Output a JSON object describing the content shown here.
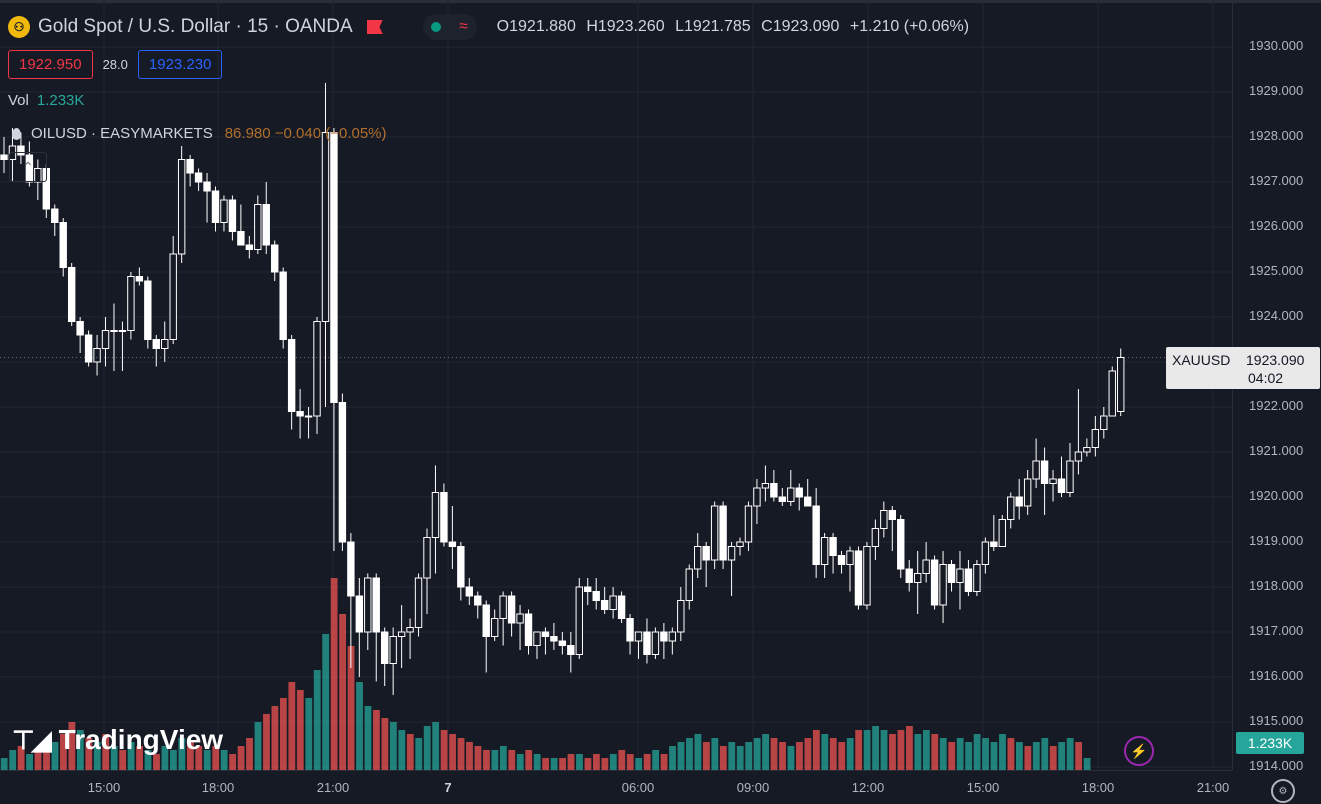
{
  "header": {
    "title": "Gold Spot / U.S. Dollar · 15 · OANDA",
    "ohlc": {
      "open": "O1921.880",
      "high": "H1923.260",
      "low": "L1921.785",
      "close": "C1923.090",
      "change": "+1.210 (+0.06%)"
    }
  },
  "quote": {
    "bid": "1922.950",
    "spread": "28.0",
    "ask": "1923.230"
  },
  "volume": {
    "label": "Vol",
    "value": "1.233K"
  },
  "compare": {
    "symbol": "OILUSD · EASYMARKETS",
    "price": "86.980 −0.040 (−0.05%)"
  },
  "branding": {
    "logo_text": "TradingView"
  },
  "last_price": {
    "symbol": "XAUUSD",
    "price": "1923.090",
    "countdown": "04:02"
  },
  "volume_badge": "1.233K",
  "colors": {
    "background": "#161a25",
    "up": "#ffffff",
    "down": "#ffffff",
    "vol_up": "#26a69a",
    "vol_down": "#ef5350",
    "grid": "#232633"
  },
  "chart_data": {
    "type": "candlestick",
    "y_ticks": [
      "1930.000",
      "1929.000",
      "1928.000",
      "1927.000",
      "1926.000",
      "1925.000",
      "1924.000",
      "1923.000",
      "1922.000",
      "1921.000",
      "1920.000",
      "1919.000",
      "1918.000",
      "1917.000",
      "1916.000",
      "1915.000",
      "1914.000"
    ],
    "x_ticks": [
      "15:00",
      "18:00",
      "21:00",
      "7",
      "06:00",
      "09:00",
      "12:00",
      "15:00",
      "18:00",
      "21:00"
    ],
    "ylim": [
      1914.0,
      1930.0
    ],
    "ohlc": [
      [
        1927.6,
        1928.0,
        1927.2,
        1927.5
      ],
      [
        1927.5,
        1928.2,
        1927.0,
        1927.8
      ],
      [
        1927.8,
        1928.1,
        1927.4,
        1927.6
      ],
      [
        1927.6,
        1927.9,
        1926.9,
        1927.0
      ],
      [
        1927.0,
        1927.5,
        1926.6,
        1927.3
      ],
      [
        1927.3,
        1927.4,
        1926.2,
        1926.4
      ],
      [
        1926.4,
        1926.5,
        1925.8,
        1926.1
      ],
      [
        1926.1,
        1926.2,
        1924.9,
        1925.1
      ],
      [
        1925.1,
        1925.2,
        1923.8,
        1923.9
      ],
      [
        1923.9,
        1924.0,
        1923.2,
        1923.6
      ],
      [
        1923.6,
        1923.7,
        1922.9,
        1923.0
      ],
      [
        1923.0,
        1923.6,
        1922.7,
        1923.3
      ],
      [
        1923.3,
        1924.0,
        1922.9,
        1923.7
      ],
      [
        1923.7,
        1924.3,
        1922.8,
        1923.7
      ],
      [
        1923.7,
        1923.9,
        1922.8,
        1923.7
      ],
      [
        1923.7,
        1925.0,
        1923.5,
        1924.9
      ],
      [
        1924.9,
        1925.1,
        1924.7,
        1924.8
      ],
      [
        1924.8,
        1924.9,
        1923.3,
        1923.5
      ],
      [
        1923.5,
        1923.6,
        1922.9,
        1923.3
      ],
      [
        1923.3,
        1923.9,
        1923.0,
        1923.5
      ],
      [
        1923.5,
        1925.8,
        1923.4,
        1925.4
      ],
      [
        1925.4,
        1927.8,
        1925.2,
        1927.5
      ],
      [
        1927.5,
        1927.6,
        1926.9,
        1927.2
      ],
      [
        1927.2,
        1927.3,
        1926.8,
        1927.0
      ],
      [
        1927.0,
        1927.2,
        1926.1,
        1926.8
      ],
      [
        1926.8,
        1926.9,
        1925.9,
        1926.1
      ],
      [
        1926.1,
        1926.7,
        1925.9,
        1926.6
      ],
      [
        1926.6,
        1926.7,
        1925.7,
        1925.9
      ],
      [
        1925.9,
        1926.5,
        1925.6,
        1925.6
      ],
      [
        1925.6,
        1925.8,
        1925.3,
        1925.5
      ],
      [
        1925.5,
        1926.7,
        1925.4,
        1926.5
      ],
      [
        1926.5,
        1927.0,
        1925.4,
        1925.6
      ],
      [
        1925.6,
        1925.7,
        1924.8,
        1925.0
      ],
      [
        1925.0,
        1925.1,
        1923.3,
        1923.5
      ],
      [
        1923.5,
        1923.6,
        1921.5,
        1921.9
      ],
      [
        1921.9,
        1922.4,
        1921.3,
        1921.8
      ],
      [
        1921.8,
        1922.0,
        1921.3,
        1921.8
      ],
      [
        1921.8,
        1924.0,
        1921.4,
        1923.9
      ],
      [
        1923.9,
        1929.2,
        1922.0,
        1928.1
      ],
      [
        1928.1,
        1928.2,
        1918.8,
        1922.1
      ],
      [
        1922.1,
        1922.3,
        1918.8,
        1919.0
      ],
      [
        1919.0,
        1919.2,
        1916.2,
        1917.8
      ],
      [
        1917.8,
        1918.2,
        1916.0,
        1917.0
      ],
      [
        1917.0,
        1918.3,
        1916.6,
        1918.2
      ],
      [
        1918.2,
        1918.3,
        1915.9,
        1917.0
      ],
      [
        1917.0,
        1917.1,
        1915.8,
        1916.3
      ],
      [
        1916.3,
        1917.1,
        1915.6,
        1916.9
      ],
      [
        1916.9,
        1917.6,
        1916.2,
        1917.0
      ],
      [
        1917.0,
        1917.3,
        1916.4,
        1917.1
      ],
      [
        1917.1,
        1918.3,
        1916.9,
        1918.2
      ],
      [
        1918.2,
        1919.3,
        1917.4,
        1919.1
      ],
      [
        1919.1,
        1920.7,
        1918.3,
        1920.1
      ],
      [
        1920.1,
        1920.3,
        1918.9,
        1919.0
      ],
      [
        1919.0,
        1919.8,
        1918.4,
        1918.9
      ],
      [
        1918.9,
        1919.0,
        1917.7,
        1918.0
      ],
      [
        1918.0,
        1918.2,
        1917.6,
        1917.8
      ],
      [
        1917.8,
        1917.9,
        1917.3,
        1917.6
      ],
      [
        1917.6,
        1917.7,
        1916.1,
        1916.9
      ],
      [
        1916.9,
        1917.5,
        1916.8,
        1917.3
      ],
      [
        1917.3,
        1917.9,
        1916.7,
        1917.8
      ],
      [
        1917.8,
        1917.9,
        1916.9,
        1917.2
      ],
      [
        1917.2,
        1917.6,
        1916.6,
        1917.4
      ],
      [
        1917.4,
        1917.5,
        1916.5,
        1916.7
      ],
      [
        1916.7,
        1917.0,
        1916.4,
        1917.0
      ],
      [
        1917.0,
        1917.1,
        1916.5,
        1916.9
      ],
      [
        1916.9,
        1917.2,
        1916.6,
        1916.8
      ],
      [
        1916.8,
        1917.0,
        1916.5,
        1916.7
      ],
      [
        1916.7,
        1917.0,
        1916.1,
        1916.5
      ],
      [
        1916.5,
        1918.2,
        1916.4,
        1918.0
      ],
      [
        1918.0,
        1918.2,
        1917.6,
        1917.9
      ],
      [
        1917.9,
        1918.2,
        1917.5,
        1917.7
      ],
      [
        1917.7,
        1918.0,
        1917.4,
        1917.5
      ],
      [
        1917.5,
        1918.0,
        1917.3,
        1917.8
      ],
      [
        1917.8,
        1917.9,
        1917.2,
        1917.3
      ],
      [
        1917.3,
        1917.4,
        1916.5,
        1916.8
      ],
      [
        1916.8,
        1917.0,
        1916.4,
        1917.0
      ],
      [
        1917.0,
        1917.3,
        1916.3,
        1916.5
      ],
      [
        1916.5,
        1917.1,
        1916.4,
        1917.0
      ],
      [
        1917.0,
        1917.2,
        1916.4,
        1916.8
      ],
      [
        1916.8,
        1917.1,
        1916.5,
        1917.0
      ],
      [
        1917.0,
        1918.0,
        1916.8,
        1917.7
      ],
      [
        1917.7,
        1918.5,
        1917.5,
        1918.4
      ],
      [
        1918.4,
        1919.2,
        1918.2,
        1918.9
      ],
      [
        1918.9,
        1919.0,
        1918.0,
        1918.6
      ],
      [
        1918.6,
        1919.9,
        1918.4,
        1919.8
      ],
      [
        1919.8,
        1919.9,
        1918.4,
        1918.6
      ],
      [
        1918.6,
        1919.0,
        1917.8,
        1918.9
      ],
      [
        1918.9,
        1919.1,
        1918.7,
        1919.0
      ],
      [
        1919.0,
        1919.9,
        1918.8,
        1919.8
      ],
      [
        1919.8,
        1920.4,
        1919.4,
        1920.2
      ],
      [
        1920.2,
        1920.7,
        1919.9,
        1920.3
      ],
      [
        1920.3,
        1920.6,
        1919.9,
        1920.0
      ],
      [
        1920.0,
        1920.2,
        1919.8,
        1919.9
      ],
      [
        1919.9,
        1920.6,
        1919.8,
        1920.2
      ],
      [
        1920.2,
        1920.3,
        1919.7,
        1920.0
      ],
      [
        1920.0,
        1920.4,
        1919.8,
        1919.8
      ],
      [
        1919.8,
        1920.2,
        1918.2,
        1918.5
      ],
      [
        1918.5,
        1919.2,
        1918.2,
        1919.1
      ],
      [
        1919.1,
        1919.2,
        1918.3,
        1918.7
      ],
      [
        1918.7,
        1918.8,
        1918.3,
        1918.5
      ],
      [
        1918.5,
        1918.9,
        1917.9,
        1918.8
      ],
      [
        1918.8,
        1918.9,
        1917.5,
        1917.6
      ],
      [
        1917.6,
        1919.0,
        1917.5,
        1918.9
      ],
      [
        1918.9,
        1919.5,
        1918.6,
        1919.3
      ],
      [
        1919.3,
        1919.9,
        1919.1,
        1919.7
      ],
      [
        1919.7,
        1919.8,
        1918.8,
        1919.5
      ],
      [
        1919.5,
        1919.6,
        1918.2,
        1918.4
      ],
      [
        1918.4,
        1918.6,
        1917.9,
        1918.1
      ],
      [
        1918.1,
        1918.8,
        1917.4,
        1918.3
      ],
      [
        1918.3,
        1919.0,
        1918.1,
        1918.6
      ],
      [
        1918.6,
        1918.7,
        1917.5,
        1917.6
      ],
      [
        1917.6,
        1918.8,
        1917.2,
        1918.5
      ],
      [
        1918.5,
        1918.6,
        1917.9,
        1918.1
      ],
      [
        1918.1,
        1918.8,
        1917.5,
        1918.4
      ],
      [
        1918.4,
        1918.6,
        1917.8,
        1917.9
      ],
      [
        1917.9,
        1918.6,
        1917.8,
        1918.5
      ],
      [
        1918.5,
        1919.1,
        1918.3,
        1919.0
      ],
      [
        1919.0,
        1919.6,
        1918.8,
        1918.9
      ],
      [
        1918.9,
        1919.6,
        1918.9,
        1919.5
      ],
      [
        1919.5,
        1920.1,
        1919.3,
        1920.0
      ],
      [
        1920.0,
        1920.4,
        1919.5,
        1919.8
      ],
      [
        1919.8,
        1920.6,
        1919.6,
        1920.4
      ],
      [
        1920.4,
        1921.3,
        1920.2,
        1920.8
      ],
      [
        1920.8,
        1921.1,
        1919.6,
        1920.3
      ],
      [
        1920.3,
        1920.6,
        1919.9,
        1920.4
      ],
      [
        1920.4,
        1920.9,
        1920.0,
        1920.1
      ],
      [
        1920.1,
        1921.2,
        1920.0,
        1920.8
      ],
      [
        1920.8,
        1922.4,
        1920.5,
        1921.0
      ],
      [
        1921.0,
        1921.3,
        1920.9,
        1921.1
      ],
      [
        1921.1,
        1921.8,
        1920.9,
        1921.5
      ],
      [
        1921.5,
        1922.0,
        1921.3,
        1921.8
      ],
      [
        1921.8,
        1922.9,
        1921.8,
        1922.8
      ],
      [
        1921.9,
        1923.3,
        1921.8,
        1923.1
      ]
    ],
    "volume": [
      [
        0.3,
        1
      ],
      [
        0.5,
        1
      ],
      [
        0.6,
        0
      ],
      [
        0.4,
        1
      ],
      [
        0.5,
        0
      ],
      [
        0.6,
        0
      ],
      [
        0.7,
        1
      ],
      [
        0.9,
        0
      ],
      [
        1.2,
        0
      ],
      [
        1.0,
        1
      ],
      [
        0.8,
        0
      ],
      [
        0.7,
        1
      ],
      [
        0.9,
        0
      ],
      [
        0.6,
        1
      ],
      [
        0.5,
        0
      ],
      [
        0.7,
        1
      ],
      [
        0.6,
        0
      ],
      [
        0.5,
        1
      ],
      [
        0.4,
        0
      ],
      [
        0.6,
        1
      ],
      [
        0.5,
        1
      ],
      [
        0.8,
        1
      ],
      [
        0.7,
        0
      ],
      [
        0.6,
        0
      ],
      [
        0.5,
        1
      ],
      [
        0.6,
        0
      ],
      [
        0.5,
        1
      ],
      [
        0.4,
        0
      ],
      [
        0.6,
        0
      ],
      [
        0.8,
        0
      ],
      [
        1.2,
        1
      ],
      [
        1.4,
        0
      ],
      [
        1.6,
        0
      ],
      [
        1.8,
        0
      ],
      [
        2.2,
        0
      ],
      [
        2.0,
        0
      ],
      [
        1.8,
        1
      ],
      [
        2.5,
        1
      ],
      [
        3.4,
        1
      ],
      [
        4.8,
        0
      ],
      [
        3.9,
        0
      ],
      [
        3.1,
        0
      ],
      [
        2.2,
        1
      ],
      [
        1.6,
        1
      ],
      [
        1.5,
        0
      ],
      [
        1.3,
        0
      ],
      [
        1.2,
        1
      ],
      [
        1.0,
        1
      ],
      [
        0.9,
        0
      ],
      [
        0.8,
        1
      ],
      [
        1.1,
        1
      ],
      [
        1.2,
        1
      ],
      [
        1.0,
        0
      ],
      [
        0.9,
        0
      ],
      [
        0.8,
        0
      ],
      [
        0.7,
        0
      ],
      [
        0.6,
        0
      ],
      [
        0.5,
        0
      ],
      [
        0.5,
        1
      ],
      [
        0.6,
        1
      ],
      [
        0.5,
        0
      ],
      [
        0.4,
        1
      ],
      [
        0.5,
        0
      ],
      [
        0.4,
        1
      ],
      [
        0.3,
        0
      ],
      [
        0.3,
        1
      ],
      [
        0.3,
        0
      ],
      [
        0.4,
        0
      ],
      [
        0.4,
        1
      ],
      [
        0.3,
        0
      ],
      [
        0.4,
        0
      ],
      [
        0.3,
        0
      ],
      [
        0.4,
        1
      ],
      [
        0.5,
        0
      ],
      [
        0.4,
        0
      ],
      [
        0.3,
        1
      ],
      [
        0.4,
        0
      ],
      [
        0.5,
        1
      ],
      [
        0.4,
        0
      ],
      [
        0.6,
        1
      ],
      [
        0.7,
        1
      ],
      [
        0.8,
        1
      ],
      [
        0.9,
        1
      ],
      [
        0.7,
        0
      ],
      [
        0.8,
        1
      ],
      [
        0.6,
        0
      ],
      [
        0.7,
        1
      ],
      [
        0.6,
        1
      ],
      [
        0.7,
        1
      ],
      [
        0.8,
        1
      ],
      [
        0.9,
        1
      ],
      [
        0.8,
        0
      ],
      [
        0.7,
        0
      ],
      [
        0.6,
        1
      ],
      [
        0.7,
        0
      ],
      [
        0.8,
        0
      ],
      [
        1.0,
        0
      ],
      [
        0.9,
        1
      ],
      [
        0.8,
        0
      ],
      [
        0.7,
        0
      ],
      [
        0.8,
        1
      ],
      [
        1.0,
        0
      ],
      [
        1.0,
        1
      ],
      [
        1.1,
        1
      ],
      [
        1.0,
        1
      ],
      [
        0.9,
        0
      ],
      [
        1.0,
        0
      ],
      [
        1.1,
        0
      ],
      [
        0.9,
        1
      ],
      [
        1.0,
        1
      ],
      [
        0.9,
        0
      ],
      [
        0.8,
        1
      ],
      [
        0.7,
        0
      ],
      [
        0.8,
        1
      ],
      [
        0.7,
        1
      ],
      [
        0.9,
        1
      ],
      [
        0.8,
        1
      ],
      [
        0.7,
        1
      ],
      [
        0.9,
        1
      ],
      [
        0.8,
        0
      ],
      [
        0.7,
        1
      ],
      [
        0.6,
        0
      ],
      [
        0.7,
        1
      ],
      [
        0.8,
        1
      ],
      [
        0.6,
        0
      ],
      [
        0.7,
        1
      ],
      [
        0.8,
        1
      ],
      [
        0.7,
        0
      ],
      [
        0.3,
        1
      ]
    ]
  }
}
